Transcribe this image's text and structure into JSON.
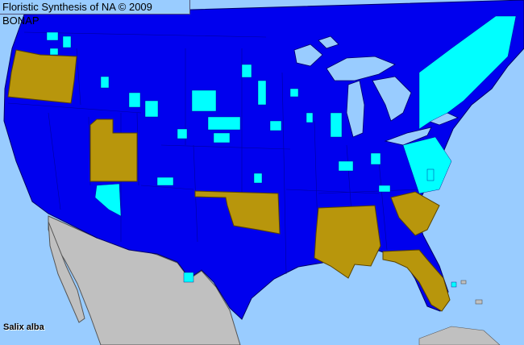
{
  "header": {
    "title": "Floristic Synthesis of NA © 2009 BONAP"
  },
  "map": {
    "species": "Salix alba",
    "colors": {
      "water": "#99ccff",
      "present_native_state": "#0000ee",
      "county_present": "#00ffff",
      "state_noxious_or_adventive": "#b8960c",
      "outside_area": "#c0c0c0",
      "borders": "#000066"
    }
  }
}
